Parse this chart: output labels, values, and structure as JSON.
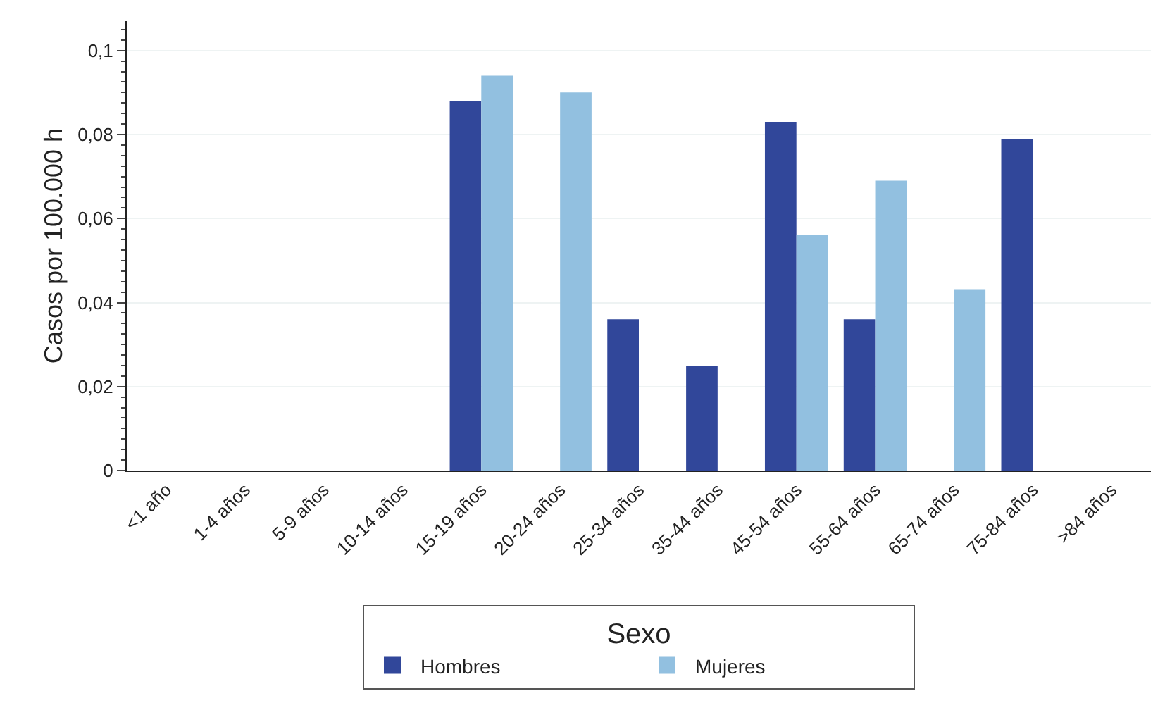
{
  "chart_data": {
    "type": "bar",
    "ylabel": "Casos por 100.000 h",
    "legend_title": "Sexo",
    "categories": [
      "<1 año",
      "1-4 años",
      "5-9 años",
      "10-14 años",
      "15-19 años",
      "20-24 años",
      "25-34 años",
      "35-44 años",
      "45-54 años",
      "55-64 años",
      "65-74 años",
      "75-84 años",
      ">84 años"
    ],
    "series": [
      {
        "name": "Hombres",
        "color": "#31479a",
        "values": [
          null,
          null,
          null,
          null,
          0.088,
          null,
          0.036,
          0.025,
          0.083,
          0.036,
          null,
          0.079,
          null
        ]
      },
      {
        "name": "Mujeres",
        "color": "#92c0e0",
        "values": [
          null,
          null,
          null,
          null,
          0.094,
          0.09,
          null,
          null,
          0.056,
          0.069,
          0.043,
          null,
          null
        ]
      }
    ],
    "ylim": [
      0,
      0.107
    ],
    "yticks": [
      {
        "value": 0,
        "label": "0"
      },
      {
        "value": 0.02,
        "label": "0,02"
      },
      {
        "value": 0.04,
        "label": "0,04"
      },
      {
        "value": 0.06,
        "label": "0,06"
      },
      {
        "value": 0.08,
        "label": "0,08"
      },
      {
        "value": 0.1,
        "label": "0,1"
      }
    ],
    "grid": "y",
    "legend": "bottom"
  }
}
